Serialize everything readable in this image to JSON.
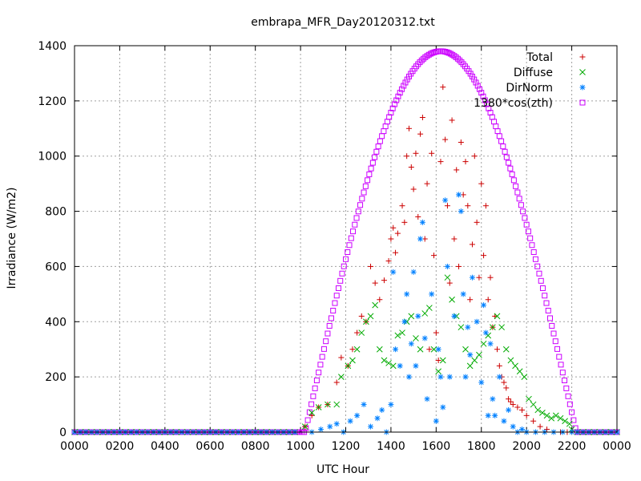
{
  "chart_data": {
    "type": "scatter",
    "title": "embrapa_MFR_Day20120312.txt",
    "xlabel": "UTC Hour",
    "ylabel": "Irradiance (W/m2)",
    "xlim": [
      0,
      24
    ],
    "ylim": [
      0,
      1400
    ],
    "grid": true,
    "legend_position": "top-right",
    "x_tick_labels": [
      "0000",
      "0200",
      "0400",
      "0600",
      "0800",
      "1000",
      "1200",
      "1400",
      "1600",
      "1800",
      "2000",
      "2200",
      "0000"
    ],
    "y_ticks": [
      0,
      200,
      400,
      600,
      800,
      1000,
      1200,
      1400
    ],
    "series": [
      {
        "name": "Total",
        "marker": "+",
        "color": "#cc0000",
        "x": [
          10.2,
          10.5,
          10.8,
          11.2,
          11.6,
          11.8,
          12.1,
          12.3,
          12.5,
          12.7,
          12.9,
          13.1,
          13.3,
          13.5,
          13.7,
          13.9,
          14.0,
          14.1,
          14.2,
          14.3,
          14.5,
          14.6,
          14.7,
          14.8,
          14.9,
          15.0,
          15.1,
          15.2,
          15.3,
          15.4,
          15.5,
          15.6,
          15.7,
          15.8,
          15.9,
          16.0,
          16.1,
          16.2,
          16.3,
          16.4,
          16.5,
          16.6,
          16.7,
          16.8,
          16.9,
          17.0,
          17.1,
          17.2,
          17.3,
          17.4,
          17.5,
          17.6,
          17.7,
          17.8,
          17.9,
          18.0,
          18.1,
          18.2,
          18.3,
          18.4,
          18.5,
          18.6,
          18.7,
          18.8,
          18.9,
          19.0,
          19.1,
          19.2,
          19.3,
          19.4,
          19.6,
          19.8,
          20.0,
          20.3,
          20.6,
          20.9,
          21.2,
          21.5,
          21.8,
          22.0
        ],
        "y": [
          20,
          60,
          90,
          100,
          180,
          270,
          240,
          300,
          360,
          420,
          400,
          600,
          540,
          480,
          550,
          620,
          700,
          740,
          650,
          720,
          820,
          760,
          1000,
          1100,
          960,
          880,
          1010,
          780,
          1080,
          1140,
          700,
          900,
          300,
          1010,
          640,
          360,
          260,
          980,
          1250,
          1060,
          820,
          540,
          1130,
          700,
          950,
          600,
          1050,
          860,
          980,
          820,
          480,
          680,
          1000,
          760,
          560,
          900,
          640,
          820,
          480,
          560,
          380,
          420,
          300,
          240,
          200,
          180,
          160,
          120,
          110,
          100,
          90,
          80,
          60,
          40,
          20,
          10,
          0,
          0,
          0,
          0
        ]
      },
      {
        "name": "Diffuse",
        "marker": "x",
        "color": "#00aa00",
        "x": [
          10.2,
          10.5,
          10.8,
          11.2,
          11.6,
          11.8,
          12.1,
          12.3,
          12.5,
          12.7,
          12.9,
          13.1,
          13.3,
          13.5,
          13.7,
          13.9,
          14.1,
          14.3,
          14.5,
          14.7,
          14.9,
          15.1,
          15.3,
          15.5,
          15.7,
          15.9,
          16.1,
          16.3,
          16.5,
          16.7,
          16.9,
          17.1,
          17.3,
          17.5,
          17.7,
          17.9,
          18.1,
          18.3,
          18.5,
          18.7,
          18.9,
          19.1,
          19.3,
          19.5,
          19.7,
          19.9,
          20.1,
          20.3,
          20.5,
          20.7,
          20.9,
          21.1,
          21.3,
          21.5,
          21.7,
          21.9,
          22.0
        ],
        "y": [
          20,
          70,
          90,
          100,
          100,
          200,
          240,
          260,
          300,
          360,
          400,
          420,
          460,
          300,
          260,
          250,
          240,
          350,
          360,
          400,
          420,
          340,
          300,
          430,
          450,
          300,
          220,
          260,
          560,
          480,
          420,
          380,
          300,
          240,
          260,
          280,
          320,
          350,
          380,
          420,
          380,
          300,
          260,
          240,
          220,
          200,
          120,
          100,
          80,
          70,
          60,
          50,
          60,
          50,
          40,
          30,
          10
        ]
      },
      {
        "name": "DirNorm",
        "marker": "*",
        "color": "#0080ff",
        "x": [
          10.5,
          10.9,
          11.3,
          11.6,
          11.9,
          12.2,
          12.5,
          12.8,
          13.1,
          13.4,
          13.6,
          13.8,
          14.0,
          14.1,
          14.2,
          14.4,
          14.6,
          14.7,
          14.8,
          14.9,
          15.0,
          15.1,
          15.2,
          15.3,
          15.4,
          15.5,
          15.6,
          15.8,
          16.0,
          16.1,
          16.2,
          16.3,
          16.4,
          16.5,
          16.6,
          16.8,
          17.0,
          17.1,
          17.2,
          17.3,
          17.4,
          17.5,
          17.6,
          17.8,
          18.0,
          18.1,
          18.2,
          18.3,
          18.4,
          18.5,
          18.6,
          18.8,
          19.0,
          19.2,
          19.4,
          19.6,
          19.8,
          20.0,
          20.4,
          20.8,
          21.2,
          21.6,
          22.0
        ],
        "y": [
          0,
          10,
          20,
          30,
          0,
          40,
          60,
          100,
          20,
          50,
          80,
          0,
          100,
          580,
          300,
          240,
          400,
          500,
          200,
          320,
          580,
          240,
          420,
          700,
          760,
          340,
          120,
          500,
          40,
          300,
          200,
          90,
          840,
          600,
          200,
          420,
          860,
          800,
          500,
          200,
          380,
          280,
          560,
          400,
          180,
          460,
          360,
          60,
          320,
          120,
          60,
          200,
          40,
          80,
          20,
          0,
          10,
          0,
          0,
          0,
          0,
          0,
          0
        ]
      },
      {
        "name": "1380*cos(zth)",
        "marker": "square",
        "color": "#cc00ff",
        "sunrise": 10.2,
        "sunset": 22.2,
        "peak_x": 16.2,
        "peak_y": 1380
      }
    ]
  }
}
